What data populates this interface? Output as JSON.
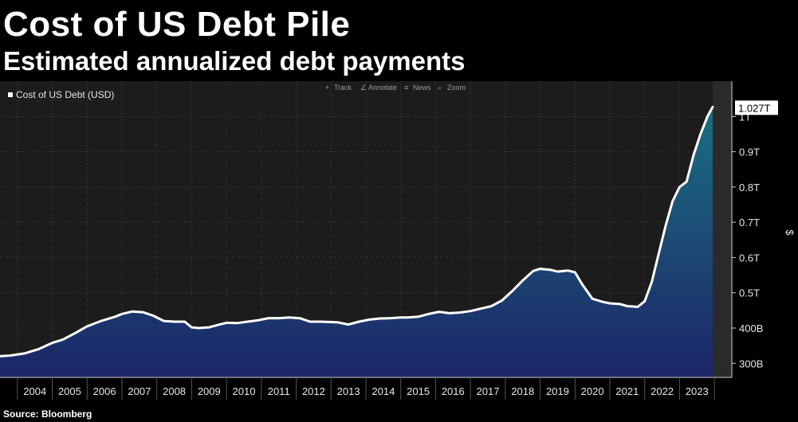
{
  "title": "Cost of US Debt Pile",
  "subtitle": "Estimated annualized debt payments",
  "source": "Source: Bloomberg",
  "toolbar": {
    "track": "Track",
    "annotate": "Annotate",
    "news": "News",
    "zoom": "Zoom"
  },
  "colors": {
    "background": "#000000",
    "plot_background": "#1c1c1c",
    "line": "#ffffff",
    "area_top": "#1b6f82",
    "area_bottom": "#1c2568",
    "callout_bg": "#ffffff",
    "callout_text": "#000000"
  },
  "chart_data": {
    "type": "area",
    "legend": "Cost of US Debt (USD)",
    "legend_position": "top-left",
    "ylabel": "$",
    "last_value_label": "1.027T",
    "grid": true,
    "ylim": [
      260,
      1100
    ],
    "y_ticks": [
      300,
      400,
      500,
      600,
      700,
      800,
      900,
      1000
    ],
    "y_tick_labels": [
      "300B",
      "400B",
      "0.5T",
      "0.6T",
      "0.7T",
      "0.8T",
      "0.9T",
      "1T"
    ],
    "x_ticks": [
      2004,
      2005,
      2006,
      2007,
      2008,
      2009,
      2010,
      2011,
      2012,
      2013,
      2014,
      2015,
      2016,
      2017,
      2018,
      2019,
      2020,
      2021,
      2022,
      2023
    ],
    "x_tick_labels": [
      "2004",
      "2005",
      "2006",
      "2007",
      "2008",
      "2009",
      "2010",
      "2011",
      "2012",
      "2013",
      "2014",
      "2015",
      "2016",
      "2017",
      "2018",
      "2019",
      "2020",
      "2021",
      "2022",
      "2023"
    ],
    "xlim": [
      2003.5,
      2024.5
    ],
    "series": [
      {
        "name": "Cost of US Debt (USD)",
        "units": "billions USD",
        "x": [
          2003.5,
          2003.8,
          2004.2,
          2004.6,
          2005.0,
          2005.3,
          2005.7,
          2006.0,
          2006.4,
          2006.8,
          2007.0,
          2007.3,
          2007.6,
          2007.9,
          2008.2,
          2008.5,
          2008.8,
          2009.0,
          2009.2,
          2009.5,
          2009.8,
          2010.0,
          2010.3,
          2010.6,
          2010.9,
          2011.2,
          2011.5,
          2011.8,
          2012.1,
          2012.4,
          2012.7,
          2013.0,
          2013.2,
          2013.5,
          2013.8,
          2014.1,
          2014.4,
          2014.7,
          2015.0,
          2015.2,
          2015.5,
          2015.8,
          2016.1,
          2016.4,
          2016.7,
          2017.0,
          2017.3,
          2017.6,
          2017.9,
          2018.2,
          2018.5,
          2018.8,
          2019.0,
          2019.3,
          2019.5,
          2019.8,
          2020.0,
          2020.2,
          2020.5,
          2020.8,
          2021.0,
          2021.3,
          2021.5,
          2021.8,
          2022.0,
          2022.2,
          2022.4,
          2022.6,
          2022.8,
          2023.0,
          2023.2,
          2023.4,
          2023.6,
          2023.8,
          2023.95
        ],
        "values": [
          320,
          322,
          328,
          340,
          358,
          367,
          388,
          405,
          420,
          432,
          440,
          447,
          445,
          435,
          420,
          418,
          418,
          402,
          400,
          402,
          410,
          415,
          414,
          418,
          422,
          428,
          428,
          430,
          428,
          418,
          418,
          417,
          416,
          410,
          418,
          424,
          427,
          428,
          430,
          430,
          432,
          440,
          446,
          442,
          444,
          448,
          455,
          462,
          478,
          505,
          535,
          562,
          568,
          565,
          560,
          563,
          558,
          525,
          483,
          474,
          470,
          468,
          462,
          460,
          476,
          530,
          610,
          690,
          760,
          800,
          815,
          890,
          950,
          1000,
          1027
        ]
      }
    ]
  }
}
